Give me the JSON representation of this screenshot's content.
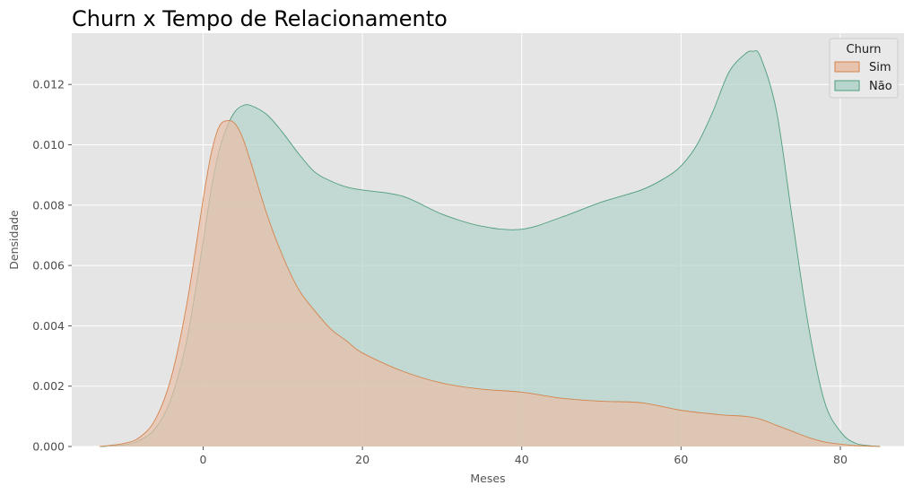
{
  "chart_data": {
    "type": "area",
    "title": "Churn x Tempo de Relacionamento",
    "xlabel": "Meses",
    "ylabel": "Densidade",
    "xlim": [
      -16.5,
      88
    ],
    "ylim": [
      0,
      0.0137
    ],
    "x_ticks": [
      0,
      20,
      40,
      60,
      80
    ],
    "x_tick_labels": [
      "0",
      "20",
      "40",
      "60",
      "80"
    ],
    "y_ticks": [
      0,
      0.002,
      0.004,
      0.006,
      0.008,
      0.01,
      0.012
    ],
    "y_tick_labels": [
      "0.000",
      "0.002",
      "0.004",
      "0.006",
      "0.008",
      "0.010",
      "0.012"
    ],
    "grid": true,
    "background": "#e5e5e5",
    "legend": {
      "title": "Churn",
      "placement": "top-right"
    },
    "series": [
      {
        "name": "Não",
        "fill": "#b3d4cb",
        "stroke": "#4e9d7d",
        "x": [
          -12.9,
          -10,
          -8,
          -6,
          -4,
          -2,
          0,
          1,
          2,
          3,
          4,
          5,
          6,
          8,
          10,
          12,
          14,
          16,
          18,
          20,
          25,
          30,
          35,
          40,
          45,
          50,
          55,
          58,
          60,
          62,
          64,
          66,
          68,
          69,
          70,
          72,
          74,
          76,
          78,
          80,
          82,
          85
        ],
        "y": [
          0.0,
          5e-05,
          0.0002,
          0.0006,
          0.0016,
          0.0036,
          0.0068,
          0.0085,
          0.0098,
          0.0106,
          0.0111,
          0.0113,
          0.0113,
          0.011,
          0.0104,
          0.0097,
          0.0091,
          0.0088,
          0.0086,
          0.0085,
          0.0083,
          0.0077,
          0.0073,
          0.0072,
          0.0076,
          0.0081,
          0.0085,
          0.0089,
          0.0093,
          0.01,
          0.0111,
          0.0124,
          0.013,
          0.0131,
          0.0129,
          0.0111,
          0.0075,
          0.004,
          0.0015,
          0.0005,
          0.0001,
          0.0
        ]
      },
      {
        "name": "Sim",
        "fill": "#e7bfa7",
        "stroke": "#d4834c",
        "x": [
          -13,
          -10,
          -8,
          -6,
          -4,
          -2,
          0,
          1,
          2,
          3,
          4,
          5,
          6,
          8,
          10,
          12,
          14,
          16,
          18,
          20,
          25,
          30,
          35,
          40,
          45,
          50,
          55,
          60,
          65,
          68,
          70,
          72,
          74,
          76,
          78,
          80,
          82,
          85
        ],
        "y": [
          0.0,
          0.0001,
          0.0003,
          0.0009,
          0.0023,
          0.0048,
          0.0082,
          0.0097,
          0.0106,
          0.0108,
          0.0107,
          0.0102,
          0.0094,
          0.0077,
          0.0063,
          0.0052,
          0.0045,
          0.0039,
          0.0035,
          0.0031,
          0.0025,
          0.0021,
          0.0019,
          0.0018,
          0.0016,
          0.0015,
          0.00145,
          0.0012,
          0.00105,
          0.001,
          0.0009,
          0.0007,
          0.0005,
          0.0003,
          0.00015,
          8e-05,
          3e-05,
          0.0
        ]
      }
    ]
  }
}
